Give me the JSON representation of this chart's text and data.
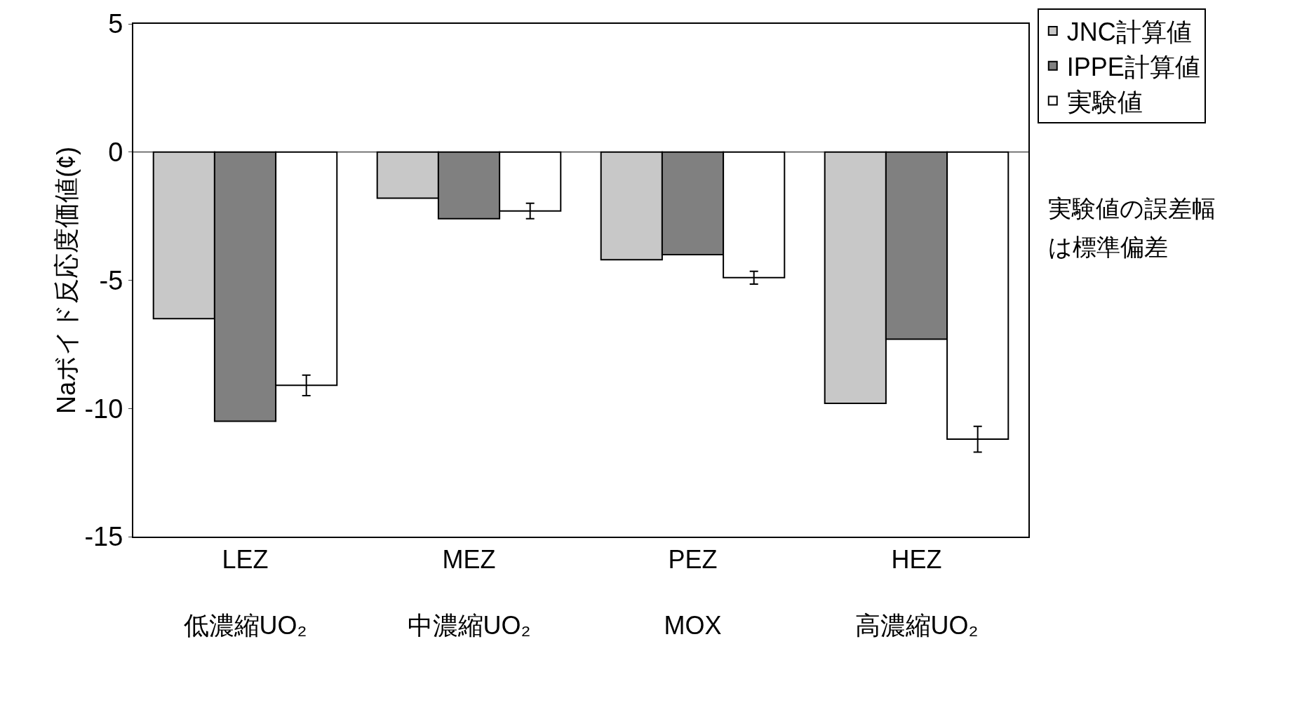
{
  "chart_data": {
    "type": "bar",
    "ylabel": "Naボイド反応度価値(¢)",
    "categories": [
      "LEZ\n低濃縮UO₂",
      "MEZ\n中濃縮UO₂",
      "PEZ\nMOX",
      "HEZ\n高濃縮UO₂"
    ],
    "series": [
      {
        "name": "JNC計算値",
        "color": "#c8c8c8",
        "values": [
          -6.5,
          -1.8,
          -4.2,
          -9.8
        ]
      },
      {
        "name": "IPPE計算値",
        "color": "#808080",
        "values": [
          -10.5,
          -2.6,
          -4.0,
          -7.3
        ]
      },
      {
        "name": "実験値",
        "color": "#ffffff",
        "values": [
          -9.1,
          -2.3,
          -4.9,
          -11.2
        ],
        "errors": [
          0.4,
          0.3,
          0.25,
          0.5
        ]
      }
    ],
    "ylim": [
      -15,
      5
    ],
    "yticks": [
      -15,
      -10,
      -5,
      0,
      5
    ],
    "grid": false,
    "legend": "top right",
    "ref_lines": [
      {
        "axis": "y",
        "value": 0,
        "color": "#000000"
      }
    ],
    "annotations": [
      "実験値の誤差幅",
      "は標準偏差"
    ]
  }
}
